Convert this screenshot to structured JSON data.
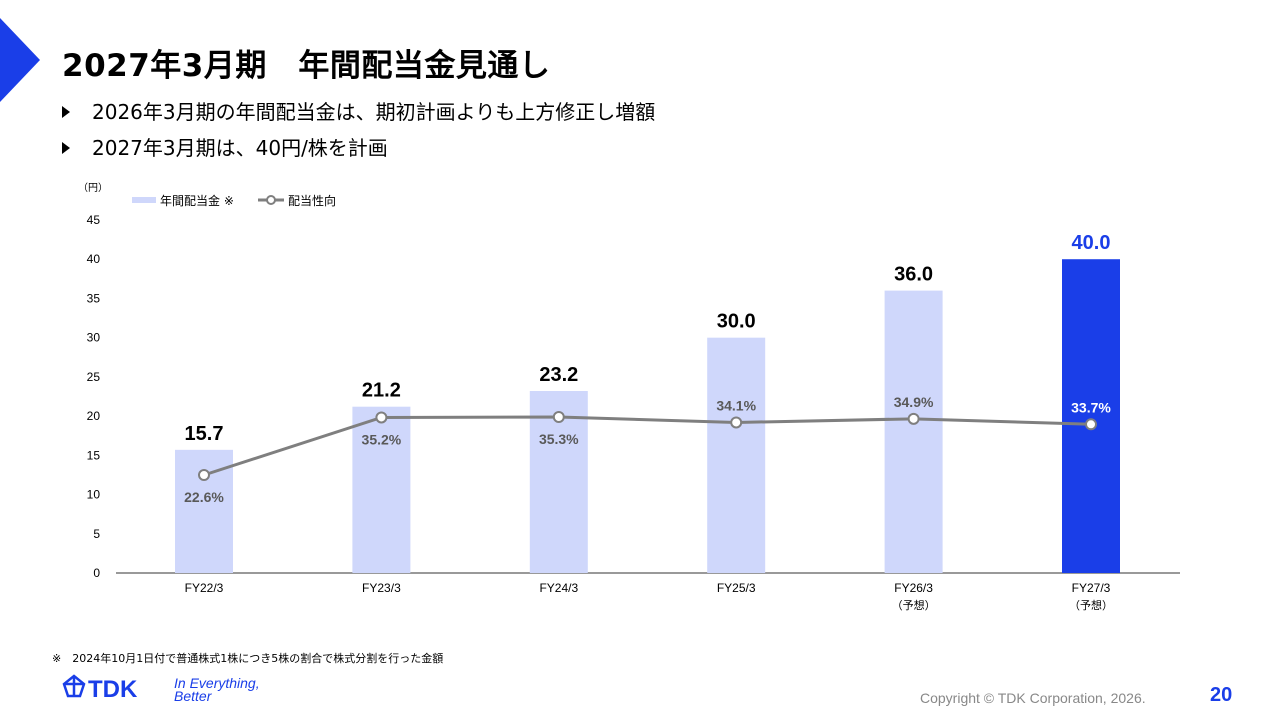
{
  "slide": {
    "title": "2027年3月期　年間配当金見通し",
    "bullets": [
      "2026年3月期の年間配当金は、期初計画よりも上方修正し増額",
      "2027年3月期は、40円/株を計画"
    ],
    "footnote": "※　2024年10月1日付で普通株式1株につき5株の割合で株式分割を行った金額",
    "logo": {
      "brand": "TDK",
      "tagline_line1": "In Everything,",
      "tagline_line2": "Better"
    },
    "copyright": "Copyright  © TDK Corporation, 2026.",
    "page_number": "20"
  },
  "colors": {
    "accent": "#1a3ee8",
    "bar_light": "#cfd7fb",
    "bar_forecast": "#1a3ee8",
    "line": "#7f7f7f",
    "text": "#000000",
    "label_gray": "#595959"
  },
  "chart_data": {
    "type": "bar",
    "y_unit_label": "（円）",
    "ylim": [
      0,
      45
    ],
    "yticks": [
      "0",
      "5",
      "10",
      "15",
      "20",
      "25",
      "30",
      "35",
      "40",
      "45"
    ],
    "grid": false,
    "legend_position": "top-left",
    "categories": [
      {
        "line1": "FY22/3",
        "line2": ""
      },
      {
        "line1": "FY23/3",
        "line2": ""
      },
      {
        "line1": "FY24/3",
        "line2": ""
      },
      {
        "line1": "FY25/3",
        "line2": ""
      },
      {
        "line1": "FY26/3",
        "line2": "（予想）"
      },
      {
        "line1": "FY27/3",
        "line2": "（予想）"
      }
    ],
    "series": [
      {
        "name": "年間配当金 ※",
        "type": "bar",
        "values": [
          15.7,
          21.2,
          23.2,
          30.0,
          36.0,
          40.0
        ],
        "labels": [
          "15.7",
          "21.2",
          "23.2",
          "30.0",
          "36.0",
          "40.0"
        ],
        "highlight_index": 5
      },
      {
        "name": "配当性向",
        "type": "line",
        "values": [
          22.6,
          35.2,
          35.3,
          34.1,
          34.9,
          33.7
        ],
        "labels": [
          "22.6%",
          "35.2%",
          "35.3%",
          "34.1%",
          "34.9%",
          "33.7%"
        ],
        "label_positions": [
          "below",
          "below",
          "below",
          "above",
          "above",
          "above"
        ]
      }
    ]
  }
}
